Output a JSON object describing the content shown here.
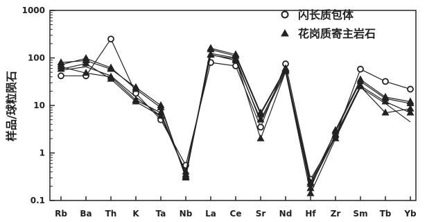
{
  "chart_data": {
    "type": "line",
    "title": "",
    "xlabel": "",
    "ylabel": "样品/球粒陨石",
    "yscale": "log",
    "ylim": [
      0.1,
      1000
    ],
    "y_ticks": [
      0.1,
      1,
      10,
      100,
      1000
    ],
    "y_tick_labels": [
      "0.1",
      "1",
      "10",
      "100",
      "1000"
    ],
    "categories": [
      "Rb",
      "Ba",
      "Th",
      "K",
      "Ta",
      "Nb",
      "La",
      "Ce",
      "Sr",
      "Nd",
      "Hf",
      "Zr",
      "Sm",
      "Tb",
      "Yb"
    ],
    "legend": {
      "position": "top-right",
      "entries": [
        {
          "label": "闪长质包体",
          "marker": "circle"
        },
        {
          "label": "花岗质寄主岩石",
          "marker": "triangle"
        }
      ]
    },
    "series": [
      {
        "group": "闪长质包体",
        "marker": "circle",
        "values": [
          42,
          42,
          250,
          18,
          5,
          0.55,
          80,
          68,
          3.5,
          75,
          0.28,
          2.2,
          58,
          32,
          22
        ]
      },
      {
        "group": "花岗质寄主岩石",
        "marker": "triangle",
        "values": [
          80,
          88,
          58,
          24,
          10,
          0.3,
          160,
          118,
          7,
          60,
          0.18,
          3,
          35,
          15,
          12
        ]
      },
      {
        "group": "花岗质寄主岩石",
        "marker": "triangle",
        "values": [
          72,
          98,
          62,
          22,
          9,
          0.32,
          150,
          110,
          6.5,
          58,
          0.24,
          2.8,
          32,
          14,
          11
        ]
      },
      {
        "group": "花岗质寄主岩石",
        "marker": "triangle",
        "values": [
          65,
          48,
          40,
          13,
          7,
          0.35,
          115,
          95,
          2,
          52,
          0.14,
          2,
          25,
          7,
          8.5
        ]
      },
      {
        "group": "花岗质寄主岩石",
        "marker": "triangle",
        "values": [
          58,
          76,
          36,
          12,
          6,
          0.4,
          118,
          88,
          5,
          55,
          0.22,
          2.4,
          26,
          12,
          7
        ]
      },
      {
        "group": "花岗质寄主岩石",
        "marker": "none",
        "values": [
          55,
          65,
          42,
          15,
          6,
          0.38,
          125,
          100,
          4.5,
          50,
          0.2,
          2.2,
          24,
          11,
          4.5
        ]
      }
    ]
  }
}
